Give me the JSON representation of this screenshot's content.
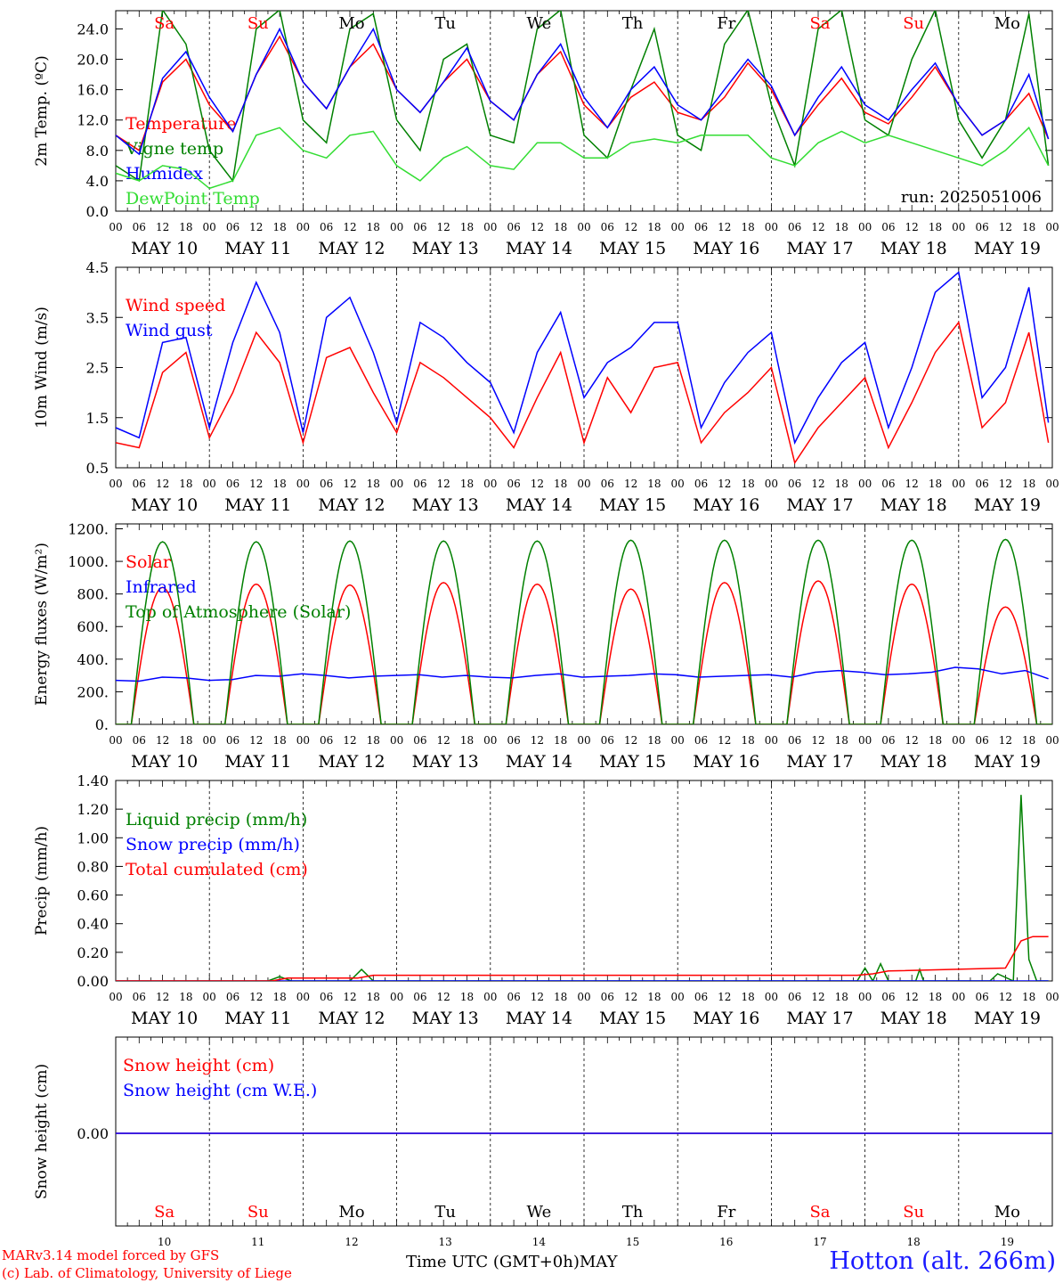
{
  "chart_data": [
    {
      "type": "line",
      "ylabel": "2m Temp. (ºC)",
      "ylim": [
        0,
        26.4
      ],
      "yticks": [
        "0.0",
        "4.0",
        "8.0",
        "12.0",
        "16.0",
        "20.0",
        "24.0"
      ],
      "ytick_values": [
        0,
        4,
        8,
        12,
        16,
        20,
        24
      ],
      "run_label": "run: 2025051006",
      "x_hours": [
        0,
        6,
        12,
        18,
        24,
        30,
        36,
        42,
        48,
        54,
        60,
        66,
        72,
        78,
        84,
        90,
        96,
        102,
        108,
        114,
        120,
        126,
        132,
        138,
        144,
        150,
        156,
        162,
        168,
        174,
        180,
        186,
        192,
        198,
        204,
        210,
        216,
        222,
        228,
        234,
        239
      ],
      "series": [
        {
          "name": "Temperature",
          "color": "#ff0000",
          "values": [
            10,
            8,
            17,
            20,
            14,
            10.5,
            18,
            23,
            17,
            13.5,
            19,
            22,
            16,
            13,
            17,
            20,
            14.5,
            12,
            18,
            21,
            14,
            11,
            15,
            17,
            13,
            12,
            15,
            19.5,
            16,
            10,
            14,
            17.5,
            13,
            11.5,
            15,
            19,
            14,
            10,
            12,
            15.5,
            9.5
          ]
        },
        {
          "name": "Vigne temp",
          "color": "#008000",
          "values": [
            6,
            4,
            26.5,
            22,
            8,
            4,
            24,
            26.5,
            12,
            9,
            24,
            26,
            12,
            8,
            20,
            22,
            10,
            9,
            24,
            26.5,
            10,
            7,
            16,
            24,
            10,
            8,
            22,
            26.5,
            14,
            6,
            24,
            26.5,
            12,
            10,
            20,
            26.5,
            12,
            7,
            12,
            26,
            6
          ]
        },
        {
          "name": "Humidex",
          "color": "#0000ff",
          "values": [
            10,
            7.5,
            17.5,
            21,
            15,
            10.5,
            18,
            24,
            17,
            13.5,
            19,
            24,
            16,
            13,
            17,
            21.5,
            14.5,
            12,
            18,
            22,
            15,
            11,
            16,
            19,
            14,
            12,
            16,
            20,
            16.5,
            10,
            15,
            19,
            14,
            12,
            16,
            19.5,
            14,
            10,
            12,
            18,
            9.5
          ]
        },
        {
          "name": "DewPoint Temp",
          "color": "#33dd33",
          "values": [
            5,
            4,
            6,
            5.5,
            3,
            4,
            10,
            11,
            8,
            7,
            10,
            10.5,
            6,
            4,
            7,
            8.5,
            6,
            5.5,
            9,
            9,
            7,
            7,
            9,
            9.5,
            9,
            10,
            10,
            10,
            7,
            6,
            9,
            10.5,
            9,
            10,
            9,
            8,
            7,
            6,
            8,
            11,
            6
          ]
        }
      ]
    },
    {
      "type": "line",
      "ylabel": "10m Wind (m/s)",
      "ylim": [
        0.5,
        4.5
      ],
      "yticks": [
        "0.5",
        "1.5",
        "2.5",
        "3.5",
        "4.5"
      ],
      "ytick_values": [
        0.5,
        1.5,
        2.5,
        3.5,
        4.5
      ],
      "x_hours": [
        0,
        6,
        12,
        18,
        24,
        30,
        36,
        42,
        48,
        54,
        60,
        66,
        72,
        78,
        84,
        90,
        96,
        102,
        108,
        114,
        120,
        126,
        132,
        138,
        144,
        150,
        156,
        162,
        168,
        174,
        180,
        186,
        192,
        198,
        204,
        210,
        216,
        222,
        228,
        234,
        239
      ],
      "series": [
        {
          "name": "Wind speed",
          "color": "#ff0000",
          "values": [
            1,
            0.9,
            2.4,
            2.8,
            1.1,
            2,
            3.2,
            2.6,
            1,
            2.7,
            2.9,
            2,
            1.2,
            2.6,
            2.3,
            1.9,
            1.5,
            0.9,
            1.9,
            2.8,
            1,
            2.3,
            1.6,
            2.5,
            2.6,
            1,
            1.6,
            2,
            2.5,
            0.6,
            1.3,
            1.8,
            2.3,
            0.9,
            1.8,
            2.8,
            3.4,
            1.3,
            1.8,
            3.2,
            1
          ]
        },
        {
          "name": "Wind gust",
          "color": "#0000ff",
          "values": [
            1.3,
            1.1,
            3,
            3.1,
            1.3,
            3,
            4.2,
            3.2,
            1.2,
            3.5,
            3.9,
            2.8,
            1.4,
            3.4,
            3.1,
            2.6,
            2.2,
            1.2,
            2.8,
            3.6,
            1.9,
            2.6,
            2.9,
            3.4,
            3.4,
            1.3,
            2.2,
            2.8,
            3.2,
            1,
            1.9,
            2.6,
            3,
            1.3,
            2.5,
            4,
            4.4,
            1.9,
            2.5,
            4.1,
            1.4
          ]
        }
      ]
    },
    {
      "type": "line",
      "ylabel": "Energy fluxes (W/m²)",
      "ylim": [
        0,
        1230
      ],
      "yticks": [
        "0.",
        "200.",
        "400.",
        "600.",
        "800.",
        "1000.",
        "1200."
      ],
      "ytick_values": [
        0,
        200,
        400,
        600,
        800,
        1000,
        1200
      ],
      "daylight_hours": [
        4,
        20
      ],
      "series": [
        {
          "name": "Solar",
          "color": "#ff0000",
          "daily_peaks": [
            840,
            860,
            855,
            870,
            860,
            830,
            870,
            880,
            860,
            720
          ]
        },
        {
          "name": "Infrared",
          "color": "#0000ff",
          "values": [
            270,
            265,
            290,
            285,
            270,
            275,
            300,
            295,
            310,
            300,
            285,
            295,
            300,
            305,
            290,
            300,
            290,
            285,
            300,
            310,
            290,
            295,
            300,
            310,
            305,
            290,
            295,
            300,
            305,
            290,
            320,
            330,
            320,
            305,
            310,
            320,
            350,
            340,
            310,
            330,
            280
          ]
        },
        {
          "name": "Top of Atmosphere (Solar)",
          "color": "#008000",
          "daily_peaks": [
            1120,
            1120,
            1125,
            1125,
            1125,
            1130,
            1130,
            1130,
            1130,
            1135
          ]
        }
      ]
    },
    {
      "type": "line",
      "ylabel": "Precip (mm/h)",
      "ylim": [
        0,
        1.4
      ],
      "yticks": [
        "0.00",
        "0.20",
        "0.40",
        "0.60",
        "0.80",
        "1.00",
        "1.20",
        "1.40"
      ],
      "ytick_values": [
        0,
        0.2,
        0.4,
        0.6,
        0.8,
        1,
        1.2,
        1.4
      ],
      "series": [
        {
          "name": "Liquid precip (mm/h)",
          "color": "#008000",
          "points": [
            [
              0,
              0
            ],
            [
              39,
              0
            ],
            [
              42,
              0.03
            ],
            [
              45,
              0
            ],
            [
              60,
              0
            ],
            [
              63,
              0.08
            ],
            [
              66,
              0
            ],
            [
              190,
              0
            ],
            [
              192,
              0.09
            ],
            [
              194,
              0
            ],
            [
              196,
              0.12
            ],
            [
              198,
              0
            ],
            [
              205,
              0
            ],
            [
              206,
              0.08
            ],
            [
              207,
              0
            ],
            [
              224,
              0
            ],
            [
              226,
              0.05
            ],
            [
              230,
              0
            ],
            [
              232,
              1.3
            ],
            [
              234,
              0.15
            ],
            [
              236,
              0
            ],
            [
              239,
              0
            ]
          ]
        },
        {
          "name": "Snow precip (mm/h)",
          "color": "#0000ff",
          "points": [
            [
              0,
              0
            ],
            [
              239,
              0
            ]
          ]
        },
        {
          "name": "Total cumulated (cm)",
          "color": "#ff0000",
          "points": [
            [
              0,
              0
            ],
            [
              40,
              0
            ],
            [
              44,
              0.02
            ],
            [
              62,
              0.02
            ],
            [
              66,
              0.04
            ],
            [
              190,
              0.04
            ],
            [
              194,
              0.05
            ],
            [
              198,
              0.07
            ],
            [
              228,
              0.09
            ],
            [
              232,
              0.28
            ],
            [
              235,
              0.31
            ],
            [
              239,
              0.31
            ]
          ]
        }
      ]
    },
    {
      "type": "line",
      "ylabel": "Snow height (cm)",
      "yticks": [
        "0.00"
      ],
      "series": [
        {
          "name": "Snow height (cm)",
          "color": "#ff0000",
          "values": [
            0,
            0
          ]
        },
        {
          "name": "Snow height (cm W.E.)",
          "color": "#0000ff",
          "values": [
            0,
            0
          ]
        }
      ]
    }
  ],
  "x_axis": {
    "hour_labels": [
      "00",
      "06",
      "12",
      "18"
    ],
    "final_label": "00",
    "dates": [
      "MAY 10",
      "MAY 11",
      "MAY 12",
      "MAY 13",
      "MAY 14",
      "MAY 15",
      "MAY 16",
      "MAY 17",
      "MAY 18",
      "MAY 19"
    ],
    "weekdays": [
      "Sa",
      "Su",
      "Mo",
      "Tu",
      "We",
      "Th",
      "Fr",
      "Sa",
      "Su",
      "Mo"
    ],
    "weekday_colors": [
      "#ff0000",
      "#ff0000",
      "#000000",
      "#000000",
      "#000000",
      "#000000",
      "#000000",
      "#ff0000",
      "#ff0000",
      "#000000"
    ],
    "day_numbers": [
      "10",
      "11",
      "12",
      "13",
      "14",
      "15",
      "16",
      "17",
      "18",
      "19"
    ],
    "title": "Time UTC (GMT+0h)",
    "month": "MAY"
  },
  "footer": {
    "credit_line1": "MARv3.14 model forced by GFS",
    "credit_line2": "(c) Lab. of Climatology, University of Liege",
    "station": "Hotton (alt. 266m)"
  }
}
